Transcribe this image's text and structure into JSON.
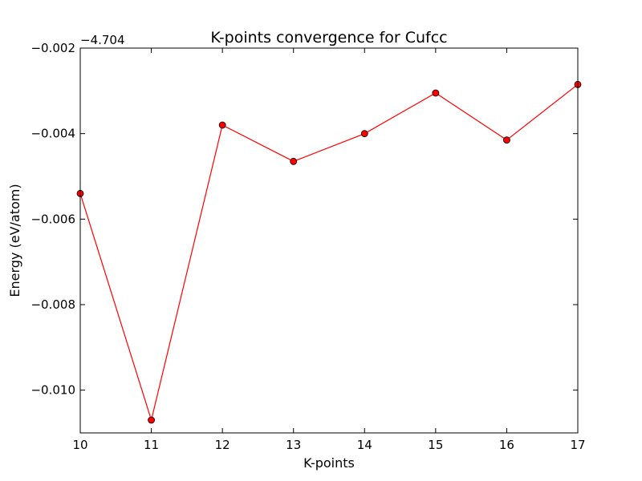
{
  "chart_data": {
    "type": "line",
    "title": "K-points convergence for Cufcc",
    "xlabel": "K-points",
    "ylabel": "Energy (eV/atom)",
    "y_offset_label": "−4.704",
    "x": [
      10,
      11,
      12,
      13,
      14,
      15,
      16,
      17
    ],
    "y_offset_values": [
      -0.0054,
      -0.0107,
      -0.0038,
      -0.00465,
      -0.004,
      -0.00305,
      -0.00415,
      -0.00285
    ],
    "xlim": [
      10,
      17
    ],
    "ylim": [
      -0.011,
      -0.002
    ],
    "x_ticks": [
      10,
      11,
      12,
      13,
      14,
      15,
      16,
      17
    ],
    "x_tick_labels": [
      "10",
      "11",
      "12",
      "13",
      "14",
      "15",
      "16",
      "17"
    ],
    "y_ticks": [
      -0.01,
      -0.008,
      -0.006,
      -0.004,
      -0.002
    ],
    "y_tick_labels": [
      "−0.010",
      "−0.008",
      "−0.006",
      "−0.004",
      "−0.002"
    ],
    "grid": false,
    "line_color": "#ff0000",
    "marker_color": "#ff0000",
    "marker_edge_color": "#000000"
  }
}
